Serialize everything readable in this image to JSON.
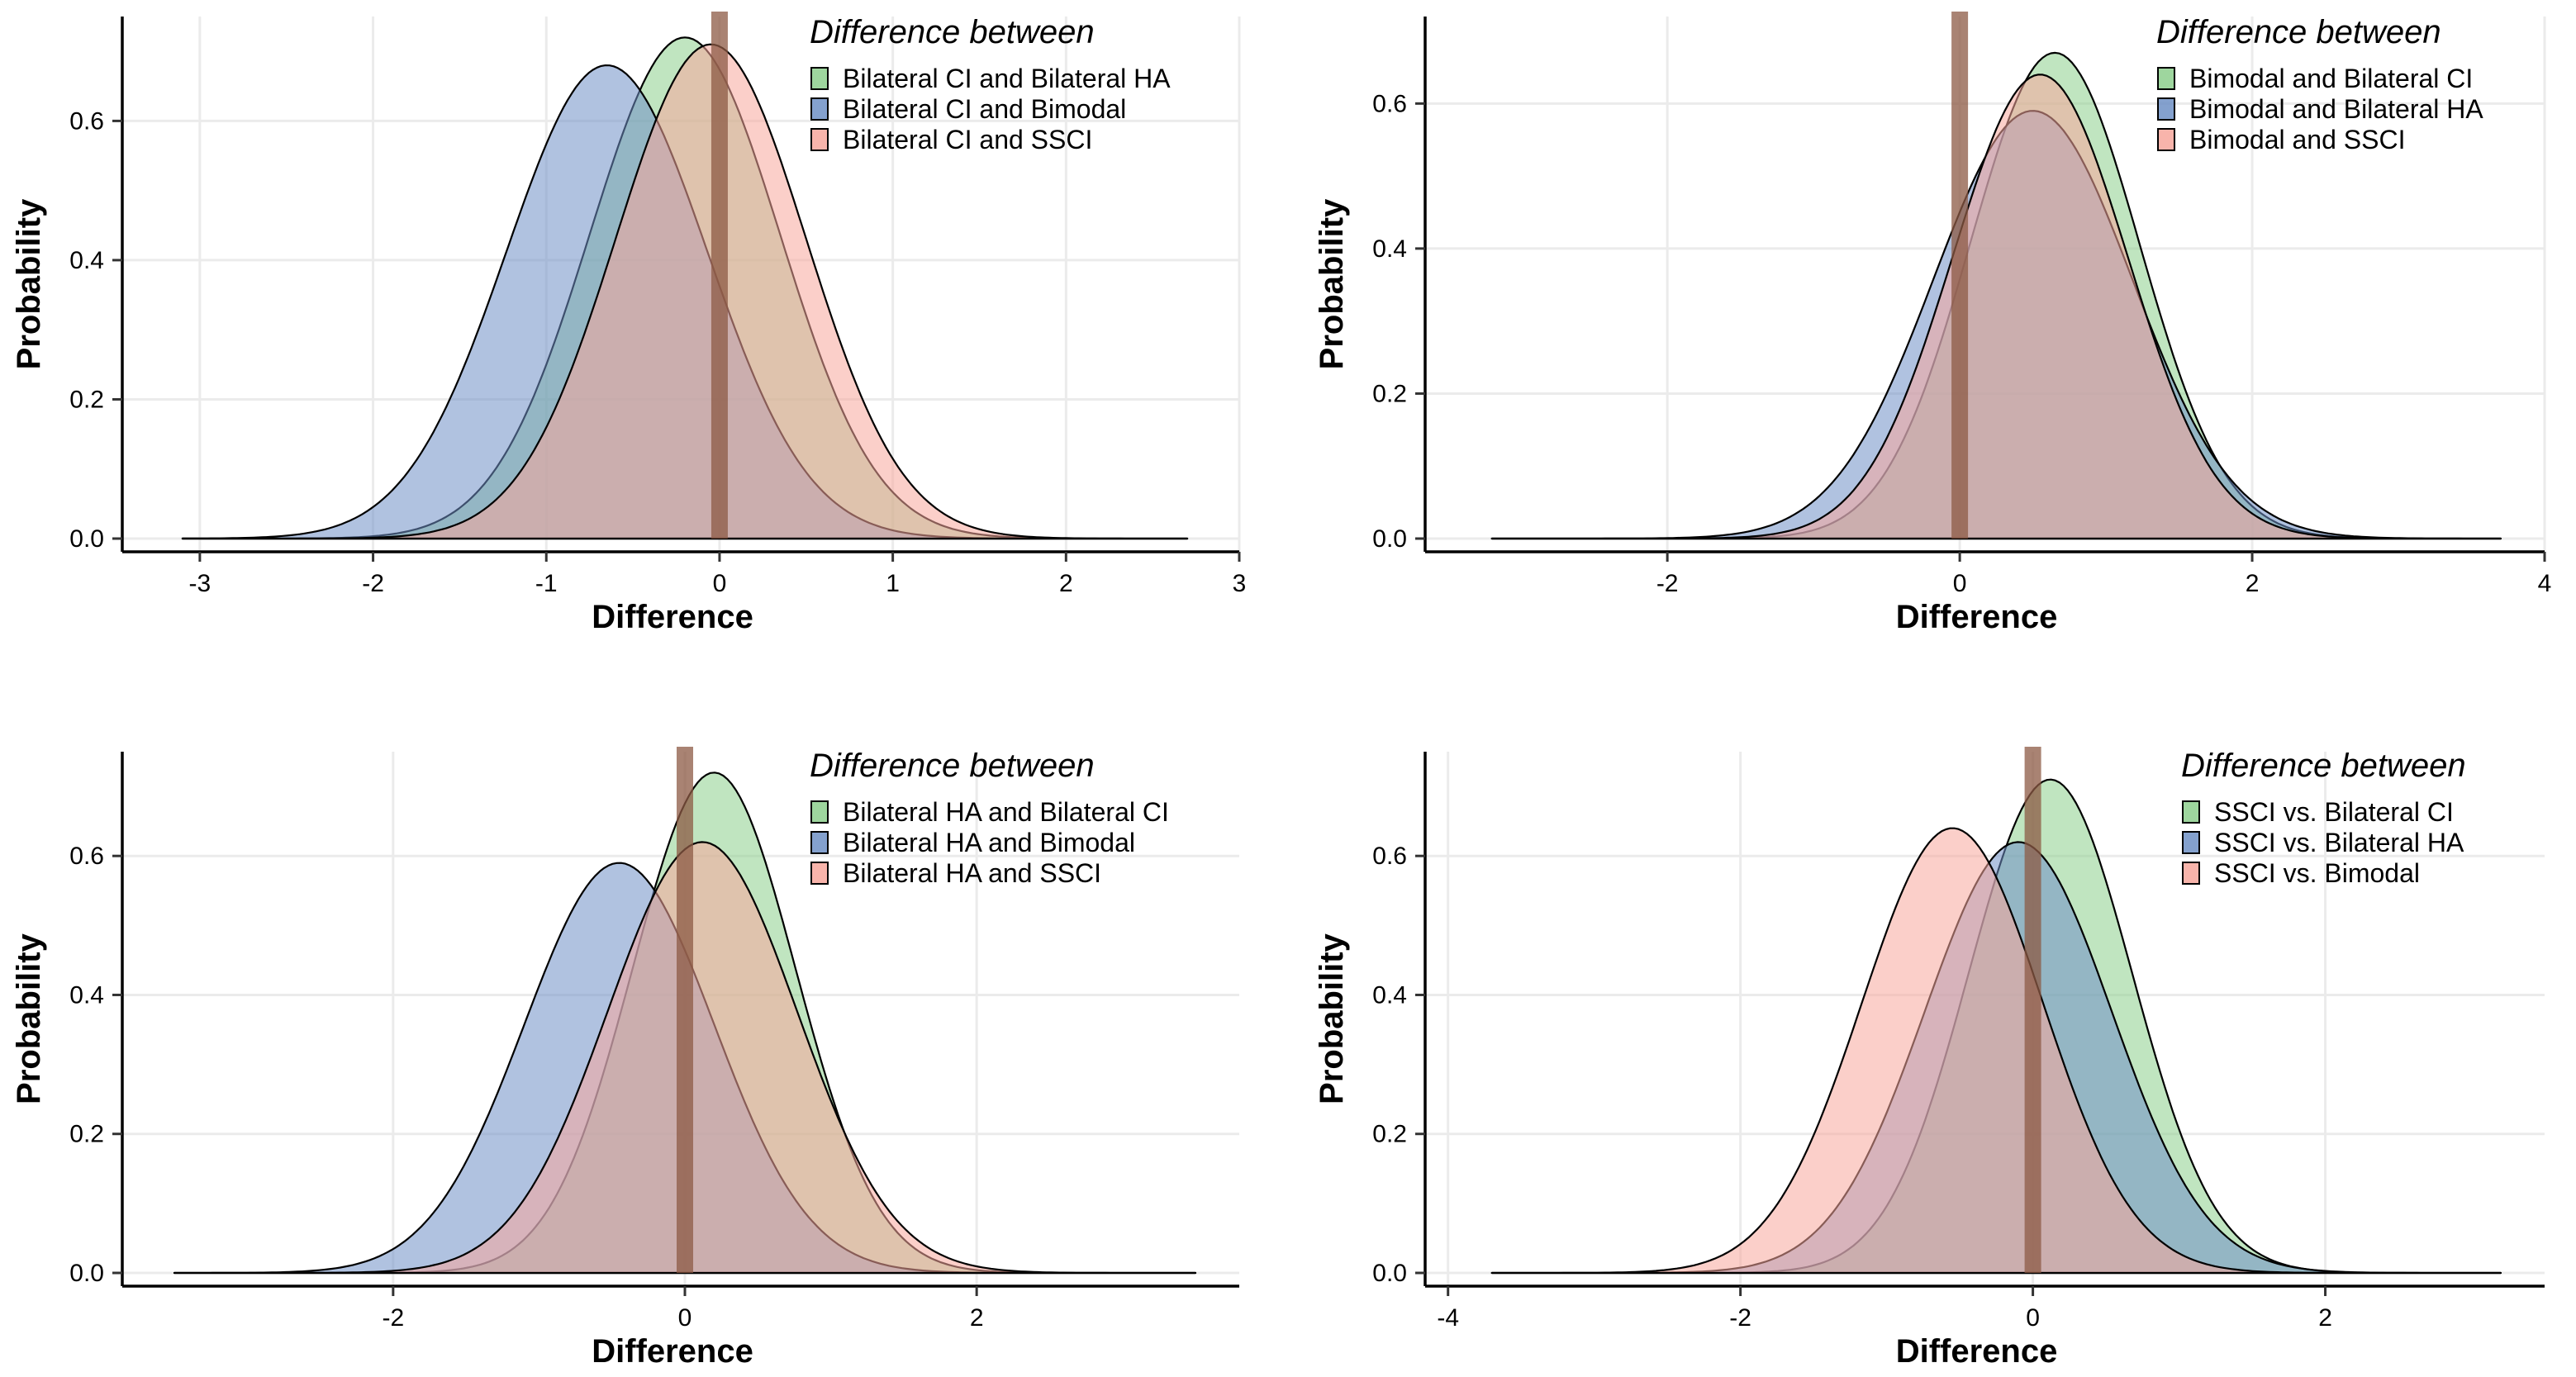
{
  "colors": {
    "green": "#8dcf8d",
    "blue": "#6f90c6",
    "red": "#f7a79c",
    "zero_line": "#8c5a44",
    "grid": "#ebebeb",
    "outline": "#000000"
  },
  "chart_data": [
    {
      "type": "area",
      "subtype": "density",
      "xlabel": "Difference",
      "ylabel": "Probability",
      "xlim": [
        -3.4,
        3.0
      ],
      "ylim": [
        0,
        0.75
      ],
      "xticks": [
        -3,
        -2,
        -1,
        0,
        1,
        2,
        3
      ],
      "yticks": [
        0.0,
        0.2,
        0.4,
        0.6
      ],
      "reference_line_x": 0,
      "legend": {
        "title": "Difference between",
        "position": "top-right",
        "entries": [
          "Bilateral CI and Bilateral HA",
          "Bilateral CI and Bimodal",
          "Bilateral CI and SSCI"
        ]
      },
      "series": [
        {
          "name": "Bilateral CI and Bilateral HA",
          "color": "green",
          "mean": -0.2,
          "sd": 0.55,
          "peak": 0.72,
          "range": [
            -3.1,
            2.7
          ]
        },
        {
          "name": "Bilateral CI and Bimodal",
          "color": "blue",
          "mean": -0.65,
          "sd": 0.58,
          "peak": 0.68,
          "range": [
            -3.1,
            2.7
          ]
        },
        {
          "name": "Bilateral CI and SSCI",
          "color": "red",
          "mean": -0.05,
          "sd": 0.55,
          "peak": 0.71,
          "range": [
            -3.1,
            2.7
          ]
        }
      ]
    },
    {
      "type": "area",
      "subtype": "density",
      "xlabel": "Difference",
      "ylabel": "Probability",
      "xlim": [
        -3.6,
        4.0
      ],
      "ylim": [
        0,
        0.72
      ],
      "xticks": [
        -2,
        0,
        2,
        4
      ],
      "yticks": [
        0.0,
        0.2,
        0.4,
        0.6
      ],
      "reference_line_x": 0,
      "legend": {
        "title": "Difference between",
        "position": "top-right",
        "entries": [
          "Bimodal and Bilateral CI",
          "Bimodal and Bilateral HA",
          "Bimodal and SSCI"
        ]
      },
      "series": [
        {
          "name": "Bimodal and Bilateral CI",
          "color": "green",
          "mean": 0.65,
          "sd": 0.58,
          "peak": 0.67,
          "range": [
            -3.2,
            3.7
          ]
        },
        {
          "name": "Bimodal and Bilateral HA",
          "color": "blue",
          "mean": 0.5,
          "sd": 0.68,
          "peak": 0.59,
          "range": [
            -3.2,
            3.7
          ]
        },
        {
          "name": "Bimodal and SSCI",
          "color": "red",
          "mean": 0.55,
          "sd": 0.6,
          "peak": 0.64,
          "range": [
            -3.2,
            3.7
          ]
        }
      ]
    },
    {
      "type": "area",
      "subtype": "density",
      "xlabel": "Difference",
      "ylabel": "Probability",
      "xlim": [
        -3.8,
        3.8
      ],
      "ylim": [
        0,
        0.75
      ],
      "xticks": [
        -2,
        0,
        2
      ],
      "yticks": [
        0.0,
        0.2,
        0.4,
        0.6
      ],
      "reference_line_x": 0,
      "legend": {
        "title": "Difference between",
        "position": "top-right",
        "entries": [
          "Bilateral HA and Bilateral CI",
          "Bilateral HA and Bimodal",
          "Bilateral HA and SSCI"
        ]
      },
      "series": [
        {
          "name": "Bilateral HA and Bilateral CI",
          "color": "green",
          "mean": 0.2,
          "sd": 0.56,
          "peak": 0.72,
          "range": [
            -3.5,
            3.5
          ]
        },
        {
          "name": "Bilateral HA and Bimodal",
          "color": "blue",
          "mean": -0.45,
          "sd": 0.65,
          "peak": 0.59,
          "range": [
            -3.5,
            3.5
          ]
        },
        {
          "name": "Bilateral HA and SSCI",
          "color": "red",
          "mean": 0.12,
          "sd": 0.65,
          "peak": 0.62,
          "range": [
            -3.5,
            3.5
          ]
        }
      ]
    },
    {
      "type": "area",
      "subtype": "density",
      "xlabel": "Difference",
      "ylabel": "Probability",
      "xlim": [
        -4.1,
        3.5
      ],
      "ylim": [
        0,
        0.75
      ],
      "xticks": [
        -4,
        -2,
        0,
        2
      ],
      "yticks": [
        0.0,
        0.2,
        0.4,
        0.6
      ],
      "reference_line_x": 0,
      "legend": {
        "title": "Difference between",
        "position": "top-right",
        "entries": [
          "SSCI vs. Bilateral CI",
          "SSCI vs. Bilateral HA",
          "SSCI vs. Bimodal"
        ]
      },
      "series": [
        {
          "name": "SSCI vs. Bilateral CI",
          "color": "green",
          "mean": 0.12,
          "sd": 0.56,
          "peak": 0.71,
          "range": [
            -3.7,
            3.2
          ]
        },
        {
          "name": "SSCI vs. Bilateral HA",
          "color": "blue",
          "mean": -0.1,
          "sd": 0.64,
          "peak": 0.62,
          "range": [
            -3.7,
            3.2
          ]
        },
        {
          "name": "SSCI vs. Bimodal",
          "color": "red",
          "mean": -0.55,
          "sd": 0.62,
          "peak": 0.64,
          "range": [
            -3.7,
            3.2
          ]
        }
      ]
    }
  ]
}
